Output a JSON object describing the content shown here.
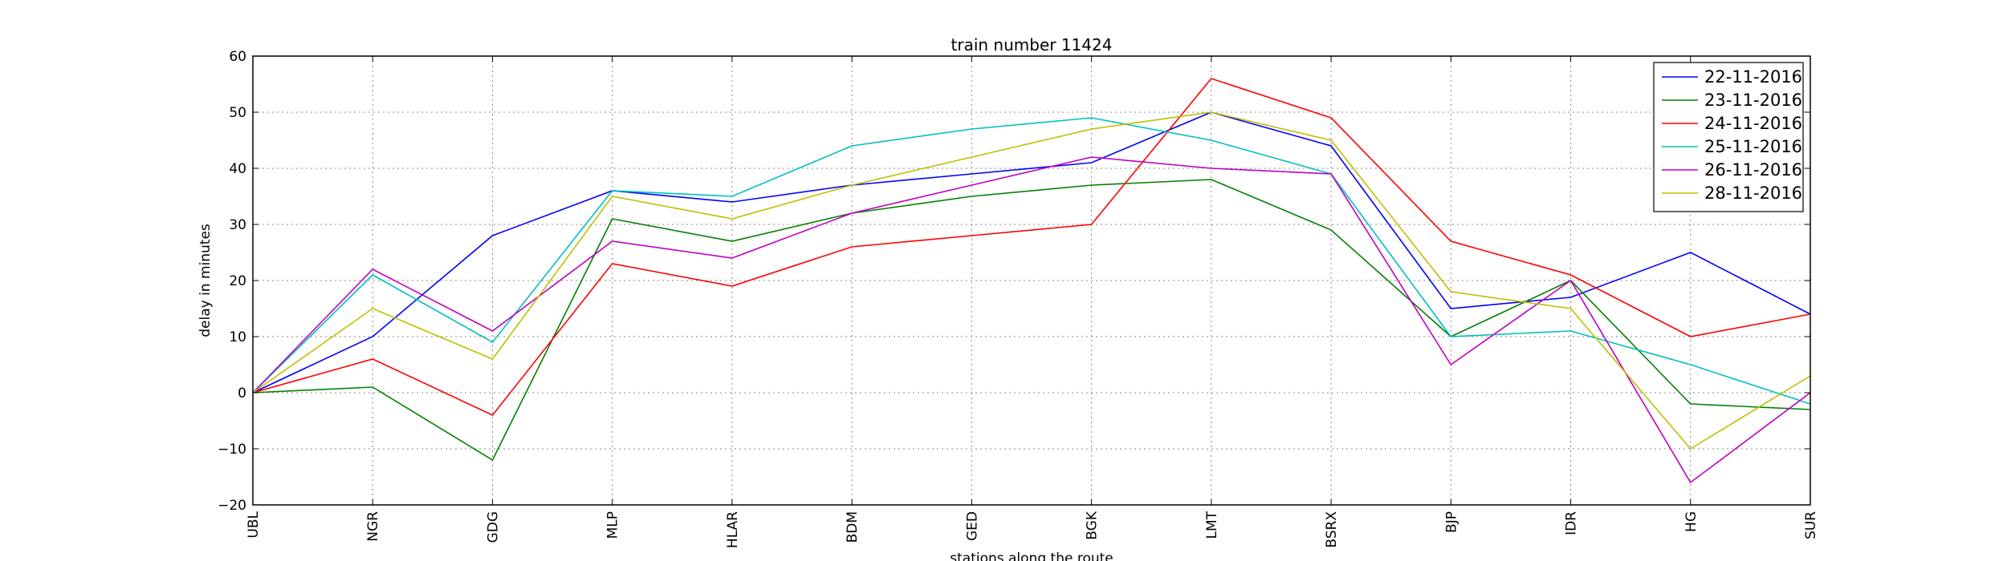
{
  "chart_data": {
    "type": "line",
    "title": "train number 11424",
    "xlabel": "stations along the route",
    "ylabel": "delay in minutes",
    "ylim": [
      -20,
      60
    ],
    "yticks": [
      -20,
      -10,
      0,
      10,
      20,
      30,
      40,
      50,
      60
    ],
    "grid": true,
    "legend_position": "top-right",
    "categories": [
      "UBL",
      "NGR",
      "GDG",
      "MLP",
      "HLAR",
      "BDM",
      "GED",
      "BGK",
      "LMT",
      "BSRX",
      "BJP",
      "IDR",
      "HG",
      "SUR"
    ],
    "series": [
      {
        "name": "22-11-2016",
        "color": "#0000ff",
        "values": [
          0,
          10,
          28,
          36,
          34,
          37,
          39,
          41,
          50,
          44,
          15,
          17,
          25,
          14
        ]
      },
      {
        "name": "23-11-2016",
        "color": "#008000",
        "values": [
          0,
          1,
          -12,
          31,
          27,
          32,
          35,
          37,
          38,
          29,
          10,
          20,
          -2,
          -3
        ]
      },
      {
        "name": "24-11-2016",
        "color": "#ff0000",
        "values": [
          0,
          6,
          -4,
          23,
          19,
          26,
          28,
          30,
          56,
          49,
          27,
          21,
          10,
          14
        ]
      },
      {
        "name": "25-11-2016",
        "color": "#00bfbf",
        "values": [
          0,
          21,
          9,
          36,
          35,
          44,
          47,
          49,
          45,
          39,
          10,
          11,
          5,
          -2
        ]
      },
      {
        "name": "26-11-2016",
        "color": "#bf00bf",
        "values": [
          0,
          22,
          11,
          27,
          24,
          32,
          37,
          42,
          40,
          39,
          5,
          20,
          -16,
          0
        ]
      },
      {
        "name": "28-11-2016",
        "color": "#bfbf00",
        "values": [
          0,
          15,
          6,
          35,
          31,
          37,
          42,
          47,
          50,
          45,
          18,
          15,
          -10,
          3
        ]
      }
    ]
  }
}
